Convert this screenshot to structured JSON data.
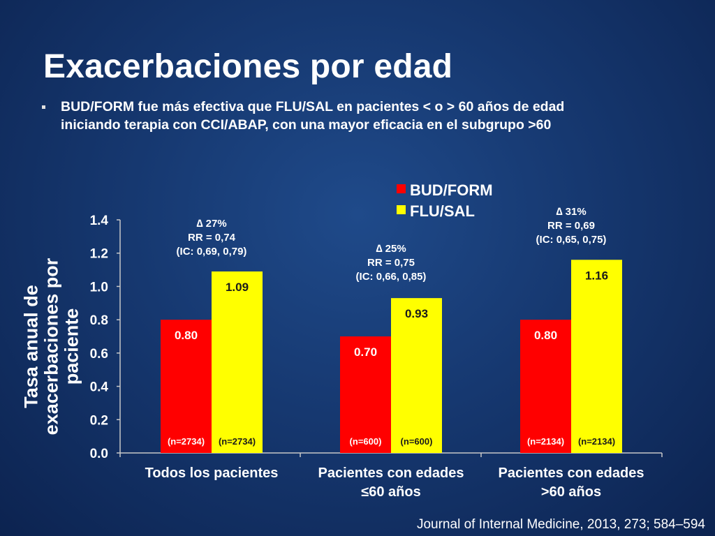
{
  "slide": {
    "title": "Exacerbaciones por edad",
    "bullet_line1": "BUD/FORM fue más efectiva que FLU/SAL en pacientes  < o > 60 años de edad",
    "bullet_line2": "iniciando terapia con CCI/ABAP, con una mayor eficacia en el subgrupo >60",
    "citation": "Journal of Internal Medicine, 2013, 273; 584–594"
  },
  "chart_data": {
    "type": "bar",
    "ylabel": "Tasa anual de exacerbaciones por paciente",
    "ylim": [
      0,
      1.4
    ],
    "yticks": [
      "0.0",
      "0.2",
      "0.4",
      "0.6",
      "0.8",
      "1.0",
      "1.2",
      "1.4"
    ],
    "grid": false,
    "legend_position": "top",
    "categories": [
      [
        "Todos los pacientes"
      ],
      [
        "Pacientes con edades",
        "≤60 años"
      ],
      [
        "Pacientes con edades",
        ">60 años"
      ]
    ],
    "series": [
      {
        "name": "BUD/FORM",
        "color": "#ff0000",
        "values": [
          0.8,
          0.7,
          0.8
        ],
        "labels": [
          "0.80",
          "0.70",
          "0.80"
        ],
        "n_labels": [
          "(n=2734)",
          "(n=600)",
          "(n=2134)"
        ]
      },
      {
        "name": "FLU/SAL",
        "color": "#ffff00",
        "values": [
          1.09,
          0.93,
          1.16
        ],
        "labels": [
          "1.09",
          "0.93",
          "1.16"
        ],
        "n_labels": [
          "(n=2734)",
          "(n=600)",
          "(n=2134)"
        ]
      }
    ],
    "annotations": [
      [
        "∆ 27%",
        "RR = 0,74",
        "(IC: 0,69, 0,79)"
      ],
      [
        "∆ 25%",
        "RR = 0,75",
        "(IC: 0,66, 0,85)"
      ],
      [
        "∆ 31%",
        "RR = 0,69",
        "(IC: 0,65, 0,75)"
      ]
    ]
  }
}
